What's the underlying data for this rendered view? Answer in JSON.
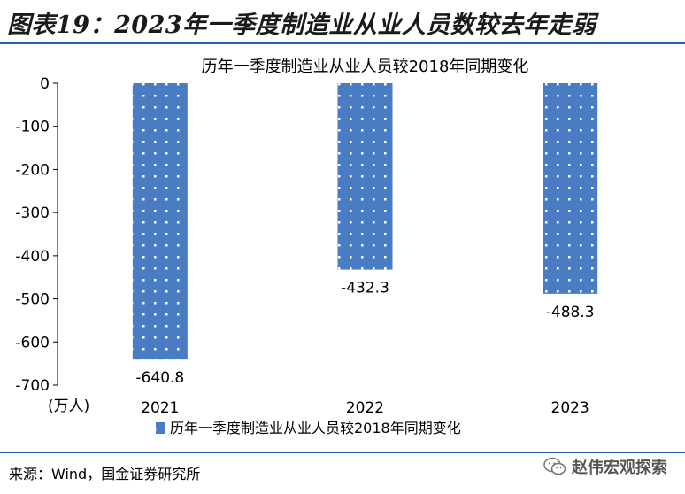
{
  "figure": {
    "title": "图表19：2023年一季度制造业从业人员数较去年走弱",
    "source": "来源：Wind，国金证券研究所",
    "watermark": "赵伟宏观探索",
    "watermark_icon": "wechat-icon"
  },
  "chart_data": {
    "type": "bar",
    "title": "历年一季度制造业从业人员较2018年同期变化",
    "categories": [
      "2021",
      "2022",
      "2023"
    ],
    "series": [
      {
        "name": "历年一季度制造业从业人员较2018年同期变化",
        "values": [
          -640.8,
          -432.3,
          -488.3
        ]
      }
    ],
    "data_labels": [
      "-640.8",
      "-432.3",
      "-488.3"
    ],
    "ylabel": "(万人)",
    "ylim": [
      -700,
      0
    ],
    "yticks": [
      0,
      -100,
      -200,
      -300,
      -400,
      -500,
      -600,
      -700
    ],
    "ytick_labels": [
      "0",
      "-100",
      "-200",
      "-300",
      "-400",
      "-500",
      "-600",
      "-700"
    ],
    "grid": false,
    "legend_position": "bottom",
    "bar_color": "#4a7cc4",
    "bar_pattern": "white dots"
  }
}
